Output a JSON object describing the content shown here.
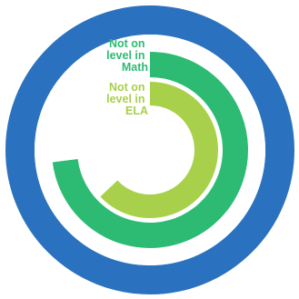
{
  "chart_data": {
    "type": "radial-bar",
    "title": "",
    "colors": {
      "frame": "#2a72bf",
      "background": "#ffffff"
    },
    "series": [
      {
        "name": "Not on level in Math",
        "label_lines": [
          "Not on",
          "level in",
          "Math"
        ],
        "value": 73,
        "unit": "%",
        "color": "#2dbb73",
        "label_color": "#2dbb73"
      },
      {
        "name": "Not on level in ELA",
        "label_lines": [
          "Not on",
          "level in",
          "ELA"
        ],
        "value": 63,
        "unit": "%",
        "color": "#a8d04a",
        "label_color": "#a8d04a"
      }
    ]
  }
}
